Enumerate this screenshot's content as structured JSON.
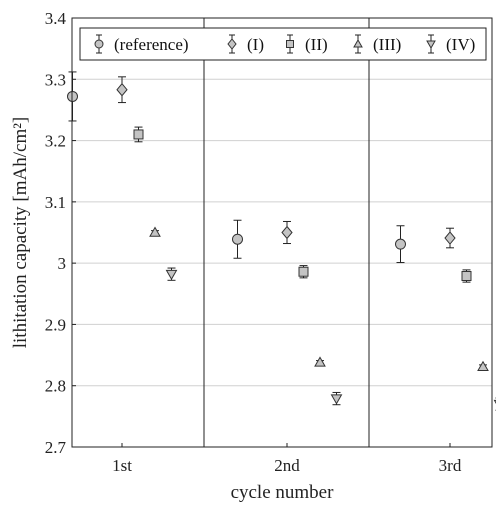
{
  "chart_data": {
    "type": "scatter",
    "xlabel": "cycle number",
    "ylabel": "lithitation capacity [mAh/cm²]",
    "ylim": [
      2.7,
      3.4
    ],
    "yticks": [
      "2.7",
      "2.8",
      "2.9",
      "3",
      "3.1",
      "3.2",
      "3.3",
      "3.4"
    ],
    "categories": [
      "1st",
      "2nd",
      "3rd"
    ],
    "grid": "horizontal",
    "legend_position": "top",
    "series": [
      {
        "name": "(reference)",
        "marker": "circle",
        "values": [
          3.272,
          3.039,
          3.031
        ],
        "errors": [
          0.04,
          0.031,
          0.03
        ]
      },
      {
        "name": "(I)",
        "marker": "diamond",
        "values": [
          3.283,
          3.05,
          3.041
        ],
        "errors": [
          0.021,
          0.018,
          0.016
        ]
      },
      {
        "name": "(II)",
        "marker": "square",
        "values": [
          3.21,
          2.986,
          2.979
        ],
        "errors": [
          0.012,
          0.01,
          0.01
        ]
      },
      {
        "name": "(III)",
        "marker": "triangle-up",
        "values": [
          3.05,
          2.838,
          2.831
        ],
        "errors": [
          0.003,
          0.003,
          0.003
        ]
      },
      {
        "name": "(IV)",
        "marker": "triangle-down",
        "values": [
          2.982,
          2.779,
          2.77
        ],
        "errors": [
          0.01,
          0.01,
          0.01
        ]
      }
    ]
  }
}
